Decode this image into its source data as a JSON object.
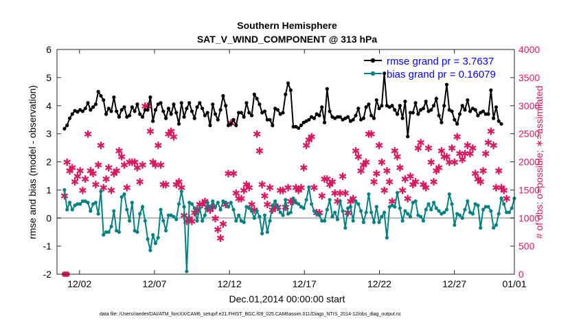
{
  "chart_data": {
    "type": "line",
    "title": "Southern Hemisphere",
    "subtitle": "SAT_V_WIND_COMPONENT @ 313 hPa",
    "xlabel": "Dec.01,2014 00:00:00 start",
    "ylabel": "rmse and bias (model - observation)",
    "y2label": "# of obs: o=possible; ∗=assimilated",
    "footnote": "data file: /Users/raeder/DAI/ATM_forcXX/CAM6_setup/f.e21.FHIST_BGC.f09_025.CAM6assim.011/Diags_NTrS_2014-12/obs_diag_output.nc",
    "xlim": [
      0.5,
      31.0
    ],
    "ylim": [
      -2,
      6
    ],
    "y2lim": [
      0,
      4000
    ],
    "x_ticks": [
      {
        "value": 2,
        "label": "12/02"
      },
      {
        "value": 7,
        "label": "12/07"
      },
      {
        "value": 12,
        "label": "12/12"
      },
      {
        "value": 17,
        "label": "12/17"
      },
      {
        "value": 22,
        "label": "12/22"
      },
      {
        "value": 27,
        "label": "12/27"
      },
      {
        "value": 31,
        "label": "01/01"
      }
    ],
    "y_ticks": [
      "-2",
      "-1",
      "0",
      "1",
      "2",
      "3",
      "4",
      "5",
      "6"
    ],
    "y2_ticks": [
      "0",
      "500",
      "1000",
      "1500",
      "2000",
      "2500",
      "3000",
      "3500",
      "4000"
    ],
    "legend_position": "top-right",
    "colors": {
      "rmse": "#000000",
      "bias": "#008080",
      "obs": "#d81b60",
      "zero_line": "#b4b4b4",
      "legend_text": "#0000ff"
    },
    "series": [
      {
        "name": "rmse grand pr = 3.7637",
        "axis": "left",
        "marker": "o",
        "values": [
          3.18,
          3.3,
          3.55,
          3.7,
          3.82,
          3.78,
          3.85,
          3.8,
          3.9,
          4.1,
          3.85,
          3.95,
          4.05,
          4.5,
          4.35,
          4.2,
          3.7,
          3.9,
          3.8,
          4.3,
          3.8,
          3.6,
          3.85,
          3.95,
          3.6,
          3.65,
          3.95,
          3.8,
          4.05,
          3.7,
          3.6,
          3.85,
          3.85,
          4.3,
          3.45,
          3.85,
          4.05,
          4.1,
          3.8,
          3.55,
          3.9,
          3.7,
          4.05,
          3.75,
          3.35,
          4.1,
          3.6,
          3.9,
          4.1,
          3.8,
          3.55,
          3.95,
          4.1,
          3.9,
          3.65,
          3.75,
          3.3,
          4.05,
          3.7,
          3.5,
          3.85,
          4.35,
          4.0,
          3.3,
          3.35,
          3.5,
          3.3,
          3.75,
          3.75,
          3.6,
          4.1,
          3.75,
          3.65,
          4.4,
          4.25,
          4.05,
          3.75,
          3.8,
          3.5,
          3.5,
          3.3,
          3.9,
          3.85,
          3.7,
          3.75,
          4.4,
          4.8,
          4.55,
          3.25,
          3.25,
          3.2,
          3.3,
          3.4,
          3.45,
          3.5,
          3.6,
          3.55,
          3.7,
          3.65,
          3.95,
          3.4,
          4.6,
          3.8,
          3.6,
          3.55,
          3.6,
          3.6,
          3.5,
          3.55,
          3.6,
          3.45,
          3.5,
          3.65,
          3.9,
          3.5,
          3.55,
          3.95,
          4.05,
          3.65,
          3.55,
          4.2,
          3.9,
          4.0,
          5.15,
          4.0,
          3.95,
          4.0,
          3.85,
          3.7,
          4.0,
          3.55,
          4.15,
          2.9,
          3.75,
          3.75,
          4.1,
          3.7,
          3.85,
          3.9,
          4.15,
          3.8,
          3.85,
          4.0,
          4.25,
          3.65,
          3.4,
          4.0,
          4.75,
          3.85,
          3.8,
          3.5,
          3.35,
          3.7,
          4.0,
          3.85,
          4.2,
          3.8,
          3.9,
          3.85,
          3.65,
          3.75,
          3.8,
          3.7,
          3.7,
          4.55,
          3.55,
          3.95,
          3.45,
          3.35
        ]
      },
      {
        "name": "bias grand pr = 0.16079",
        "axis": "left",
        "marker": "o",
        "values": [
          1.0,
          0.3,
          0.55,
          0.3,
          0.45,
          0.5,
          0.5,
          0.6,
          0.6,
          0.55,
          0.25,
          0.5,
          0.55,
          0.15,
          0.95,
          -0.6,
          -0.5,
          -0.5,
          -0.3,
          0.25,
          -0.45,
          -0.5,
          0.75,
          0.85,
          0.3,
          -0.1,
          0.55,
          -0.45,
          -0.5,
          0.15,
          0.4,
          -0.1,
          -0.75,
          -1.15,
          -0.6,
          -0.9,
          -0.7,
          0.3,
          -0.1,
          -0.45,
          0.1,
          0.1,
          0.05,
          -0.05,
          0.5,
          0.95,
          0.4,
          -1.9,
          0.55,
          0.5,
          0.35,
          -0.1,
          0.35,
          -0.1,
          0.1,
          0.55,
          0.35,
          0.6,
          0.4,
          0.55,
          0.3,
          0.6,
          0.55,
          0.4,
          0.55,
          0.3,
          -0.1,
          0.1,
          -0.1,
          -0.15,
          0.4,
          0.35,
          0.25,
          0.0,
          0.25,
          0.05,
          -0.55,
          0.1,
          -0.5,
          -0.1,
          0.45,
          0.6,
          0.4,
          0.2,
          0.1,
          0.65,
          0.15,
          0.2,
          0.7,
          0.55,
          0.5,
          0.4,
          0.35,
          0.65,
          1.1,
          0.5,
          0.25,
          0.15,
          0.1,
          -0.1,
          -0.1,
          0.3,
          0.65,
          0.05,
          0.2,
          -0.05,
          0.6,
          0.25,
          -0.35,
          0.35,
          0.4,
          -0.1,
          0.6,
          0.5,
          0.25,
          -0.15,
          0.2,
          0.85,
          0.2,
          -0.15,
          0.4,
          -0.15,
          0.05,
          0.2,
          -0.7,
          0.4,
          0.45,
          0.4,
          0.9,
          0.35,
          -0.1,
          0.25,
          0.15,
          0.05,
          0.55,
          0.6,
          0.1,
          0.05,
          -0.1,
          0.3,
          0.5,
          0.3,
          0.55,
          0.35,
          0.25,
          0.15,
          0.2,
          0.3,
          0.85,
          0.5,
          -0.25,
          0.15,
          0.1,
          0.0,
          0.3,
          0.6,
          0.2,
          0.15,
          0.5,
          0.45,
          -0.35,
          0.3,
          0.4,
          0.4,
          0.25,
          -0.35,
          -0.25,
          0.15,
          0.7,
          0.5,
          0.2,
          0.2,
          0.35,
          0.7
        ]
      },
      {
        "name": "obs assimilated",
        "axis": "right",
        "marker": "*",
        "values": [
          1400,
          2000,
          1850,
          1900,
          1650,
          1750,
          1850,
          1500,
          1700,
          2500,
          1850,
          1800,
          1600,
          1950,
          2300,
          1550,
          1700,
          1900,
          1500,
          1800,
          1850,
          2200,
          2100,
          1950,
          1550,
          2000,
          2000,
          2000,
          1900,
          1650,
          1950,
          3000,
          3000,
          2550,
          2000,
          1950,
          2300,
          1950,
          1600,
          1600,
          2500,
          2550,
          2450,
          1600,
          1650,
          1550,
          1050,
          950,
          1000,
          950,
          1100,
          1150,
          1250,
          1250,
          1300,
          1200,
          1150,
          1200,
          1000,
          800,
          650,
          900,
          1250,
          1800,
          2700,
          1800,
          1450,
          1350,
          1350,
          1500,
          1600,
          1550,
          1250,
          1150,
          2500,
          2200,
          1600,
          1400,
          1250,
          1550,
          1150,
          1200,
          1200,
          1500,
          1500,
          1200,
          1550,
          1300,
          1300,
          1550,
          1500,
          1550,
          1900,
          2300,
          2400,
          2450,
          1550,
          1100,
          1100,
          1400,
          1700,
          1700,
          1600,
          1650,
          1450,
          1300,
          1450,
          1750,
          1450,
          1100,
          1300,
          1350,
          2200,
          2100,
          1850,
          1950,
          2000,
          2500,
          2500,
          1650,
          1800,
          2300,
          2000,
          1500,
          1850,
          1650,
          1300,
          2200,
          2100,
          1900,
          1500,
          1700,
          1350,
          1750,
          1600,
          1650,
          2250,
          2350,
          1600,
          1550,
          2250,
          2000,
          1650,
          1850,
          1900,
          2200,
          2100,
          2100,
          2000,
          2250,
          2000,
          2450,
          2150,
          2050,
          2150,
          2300,
          2150,
          2250,
          1800,
          1700,
          1650,
          1850,
          2150,
          2350,
          2550,
          2300,
          1550,
          1850,
          1550,
          1500,
          1350
        ]
      },
      {
        "name": "obs possible",
        "axis": "right",
        "marker": "o",
        "values": [
          0,
          0
        ]
      }
    ]
  }
}
